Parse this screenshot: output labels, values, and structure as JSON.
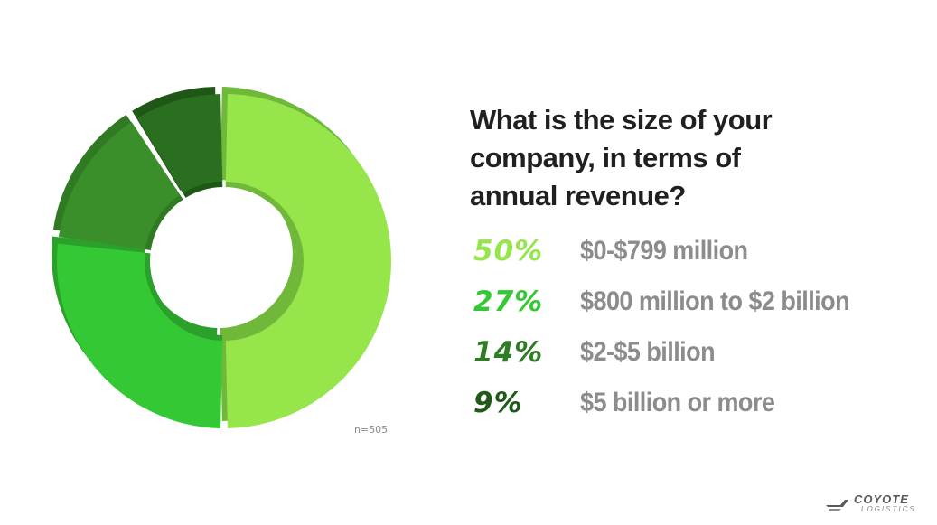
{
  "chart_data": {
    "type": "pie",
    "title": "What is the size of your company, in terms of annual revenue?",
    "categories": [
      "$0-$799 million",
      "$800 million to $2 billion",
      "$2-$5 billion",
      "$5 billion or more"
    ],
    "values": [
      50,
      27,
      14,
      9
    ],
    "value_labels": [
      "50%",
      "27%",
      "14%",
      "9%"
    ],
    "colors": [
      "#96e64b",
      "#34c934",
      "#3a8f2b",
      "#2a6e1f"
    ],
    "shadow_colors": [
      "#6fb83a",
      "#2ba02a",
      "#2f7a23",
      "#1f5716"
    ],
    "label_colors": [
      "#96e64b",
      "#34c934",
      "#2e7d25",
      "#1f5a18"
    ],
    "note": "n=505",
    "legend": "right"
  },
  "question_lines": [
    "What is the size of your",
    "company, in terms of",
    "annual revenue?"
  ],
  "logo": {
    "name": "COYOTE",
    "sub": "LOGISTICS"
  }
}
